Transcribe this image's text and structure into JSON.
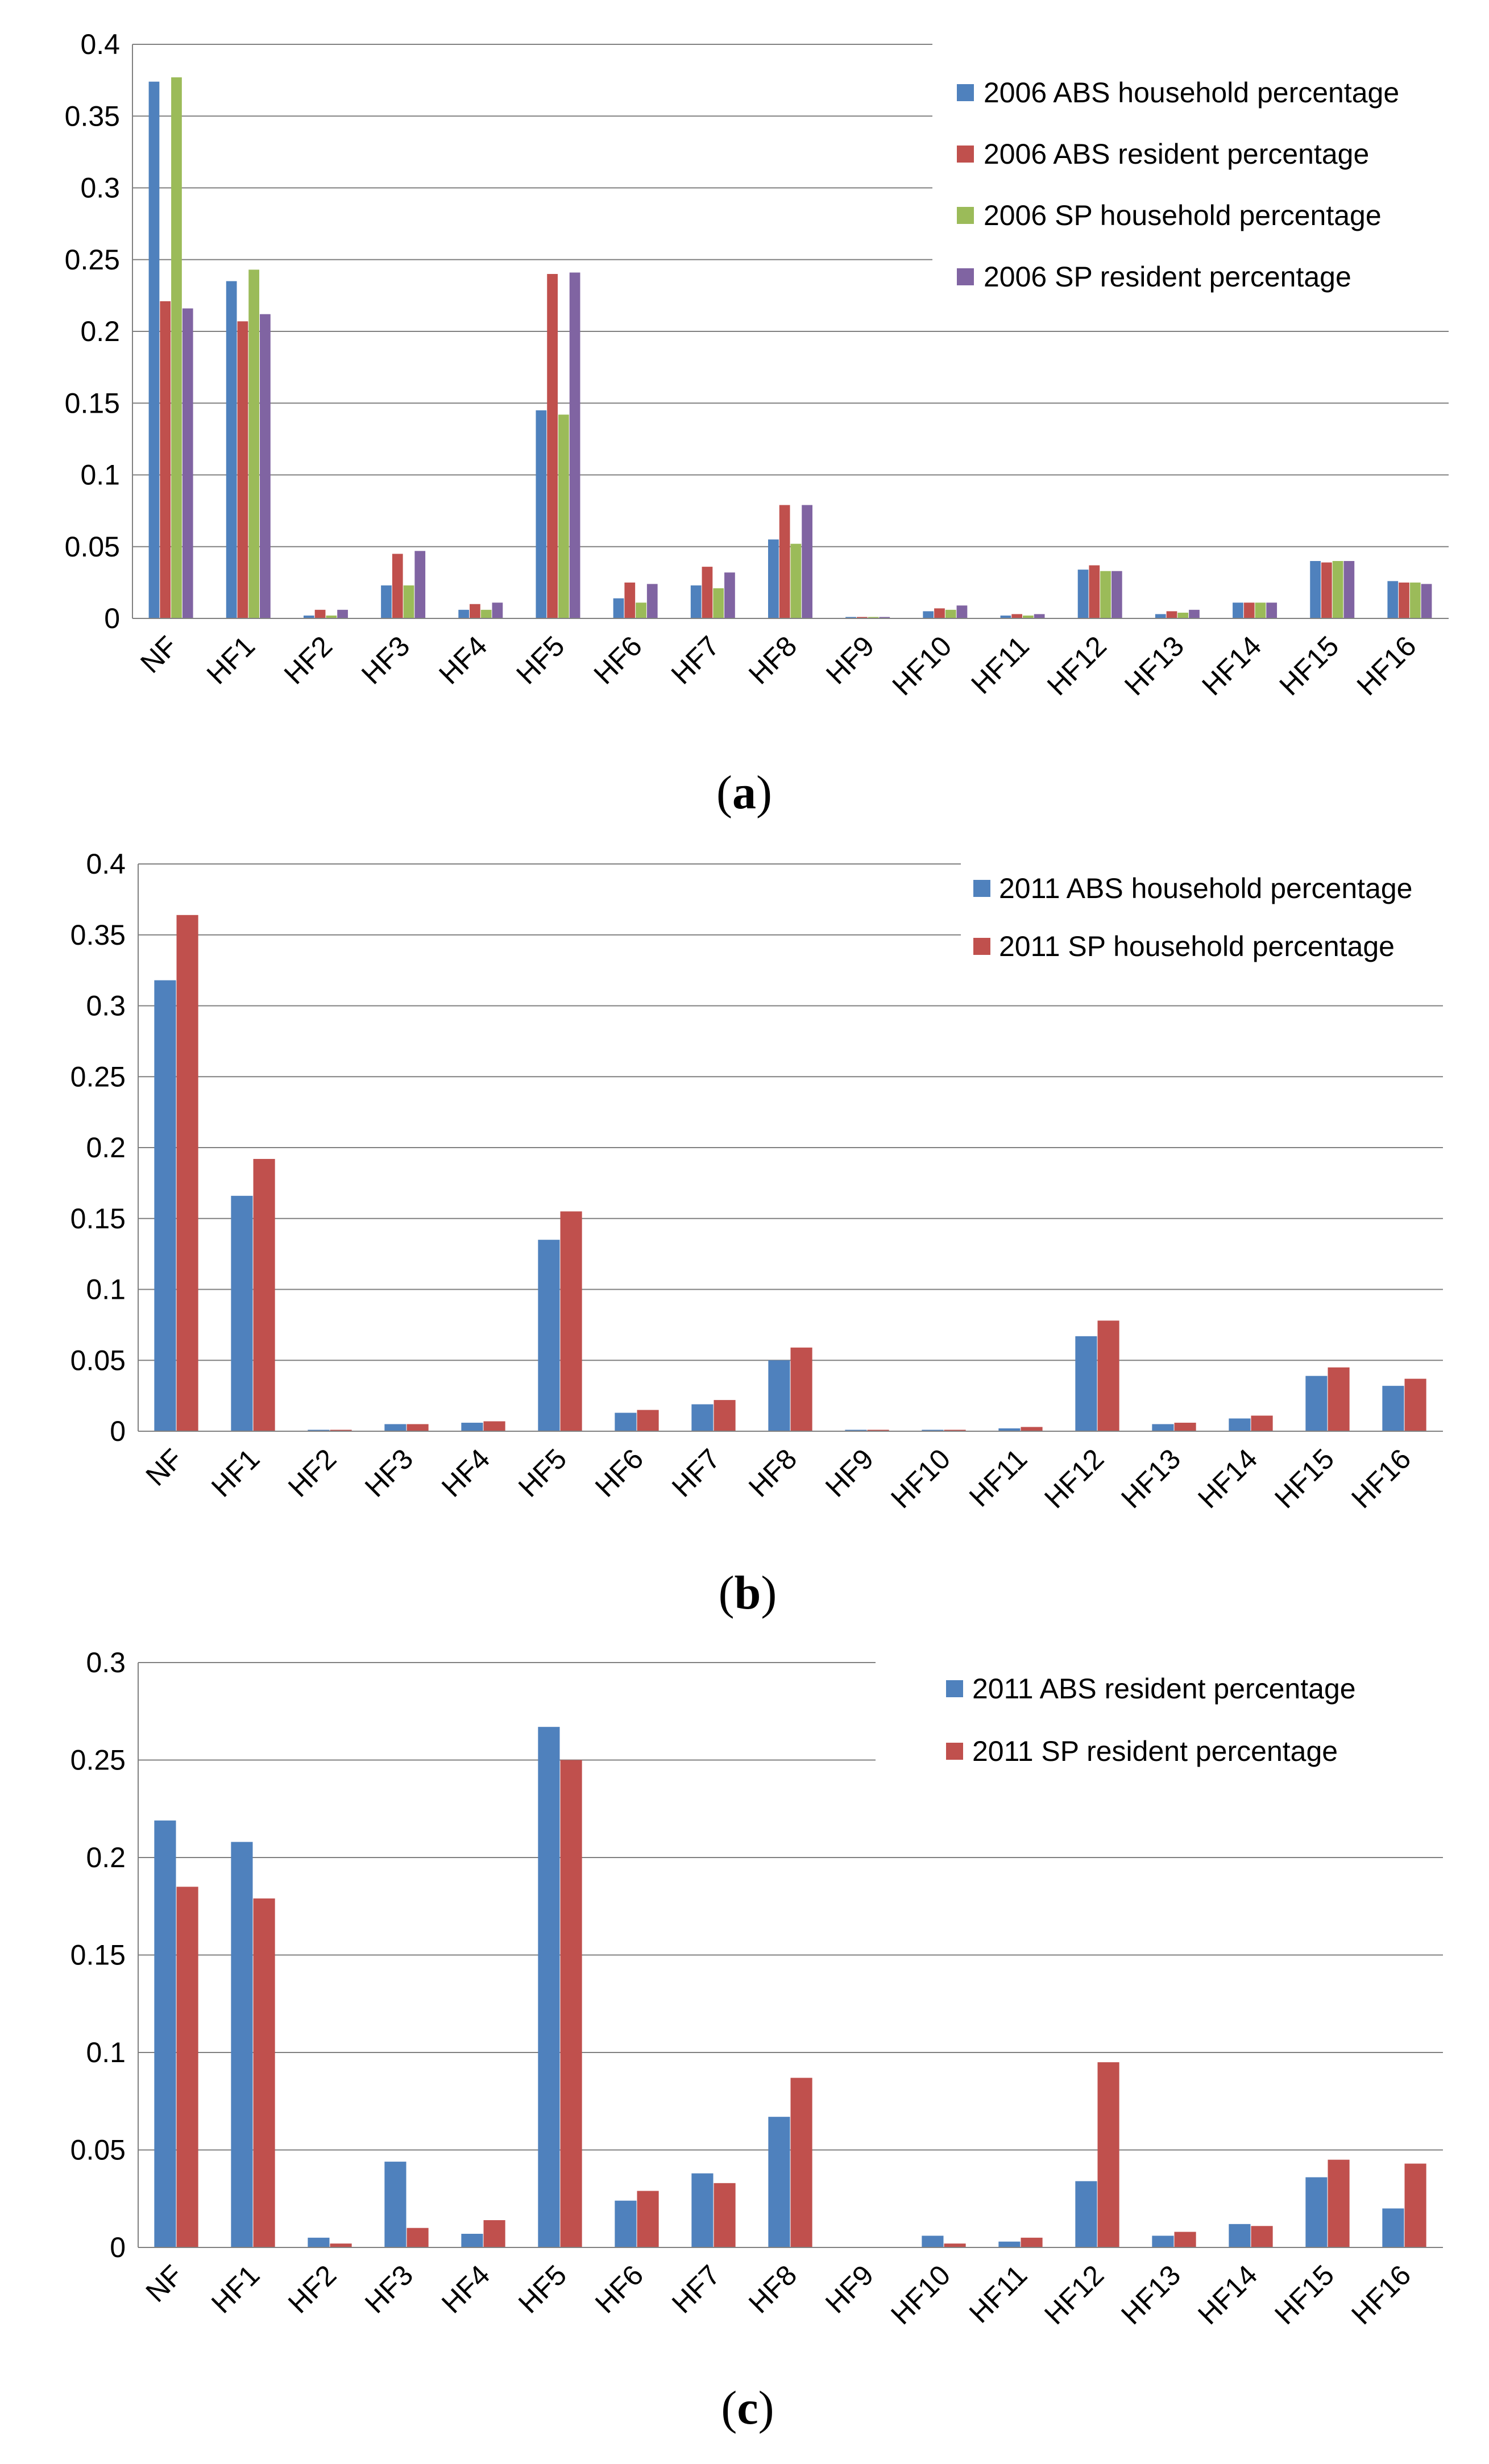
{
  "colors": {
    "blue": "#4f81bd",
    "red": "#c0504d",
    "green": "#9bbb59",
    "purple": "#8064a2"
  },
  "chart_data": [
    {
      "type": "bar",
      "panel_label": "a",
      "categories": [
        "NF",
        "HF1",
        "HF2",
        "HF3",
        "HF4",
        "HF5",
        "HF6",
        "HF7",
        "HF8",
        "HF9",
        "HF10",
        "HF11",
        "HF12",
        "HF13",
        "HF14",
        "HF15",
        "HF16"
      ],
      "ylim": [
        0,
        0.4
      ],
      "yticks": [
        "0",
        "0.05",
        "0.1",
        "0.15",
        "0.2",
        "0.25",
        "0.3",
        "0.35",
        "0.4"
      ],
      "legend_position": "top-right",
      "series": [
        {
          "name": "2006 ABS household percentage",
          "color": "#4f81bd",
          "values": [
            0.374,
            0.235,
            0.002,
            0.023,
            0.006,
            0.145,
            0.014,
            0.023,
            0.055,
            0.001,
            0.005,
            0.002,
            0.034,
            0.003,
            0.011,
            0.04,
            0.026
          ]
        },
        {
          "name": "2006 ABS resident percentage",
          "color": "#c0504d",
          "values": [
            0.221,
            0.207,
            0.006,
            0.045,
            0.01,
            0.24,
            0.025,
            0.036,
            0.079,
            0.001,
            0.007,
            0.003,
            0.037,
            0.005,
            0.011,
            0.039,
            0.025
          ]
        },
        {
          "name": "2006 SP household percentage",
          "color": "#9bbb59",
          "values": [
            0.377,
            0.243,
            0.002,
            0.023,
            0.006,
            0.142,
            0.011,
            0.021,
            0.052,
            0.001,
            0.006,
            0.002,
            0.033,
            0.004,
            0.011,
            0.04,
            0.025
          ]
        },
        {
          "name": "2006 SP resident percentage",
          "color": "#8064a2",
          "values": [
            0.216,
            0.212,
            0.006,
            0.047,
            0.011,
            0.241,
            0.024,
            0.032,
            0.079,
            0.001,
            0.009,
            0.003,
            0.033,
            0.006,
            0.011,
            0.04,
            0.024
          ]
        }
      ]
    },
    {
      "type": "bar",
      "panel_label": "b",
      "categories": [
        "NF",
        "HF1",
        "HF2",
        "HF3",
        "HF4",
        "HF5",
        "HF6",
        "HF7",
        "HF8",
        "HF9",
        "HF10",
        "HF11",
        "HF12",
        "HF13",
        "HF14",
        "HF15",
        "HF16"
      ],
      "ylim": [
        0,
        0.4
      ],
      "yticks": [
        "0",
        "0.05",
        "0.1",
        "0.15",
        "0.2",
        "0.25",
        "0.3",
        "0.35",
        "0.4"
      ],
      "legend_position": "top-right",
      "series": [
        {
          "name": "2011 ABS household percentage",
          "color": "#4f81bd",
          "values": [
            0.318,
            0.166,
            0.001,
            0.005,
            0.006,
            0.135,
            0.013,
            0.019,
            0.05,
            0.001,
            0.001,
            0.002,
            0.067,
            0.005,
            0.009,
            0.039,
            0.032
          ]
        },
        {
          "name": "2011 SP household percentage",
          "color": "#c0504d",
          "values": [
            0.364,
            0.192,
            0.001,
            0.005,
            0.007,
            0.155,
            0.015,
            0.022,
            0.059,
            0.001,
            0.001,
            0.003,
            0.078,
            0.006,
            0.011,
            0.045,
            0.037
          ]
        }
      ]
    },
    {
      "type": "bar",
      "panel_label": "c",
      "categories": [
        "NF",
        "HF1",
        "HF2",
        "HF3",
        "HF4",
        "HF5",
        "HF6",
        "HF7",
        "HF8",
        "HF9",
        "HF10",
        "HF11",
        "HF12",
        "HF13",
        "HF14",
        "HF15",
        "HF16"
      ],
      "ylim": [
        0,
        0.3
      ],
      "yticks": [
        "0",
        "0.05",
        "0.1",
        "0.15",
        "0.2",
        "0.25",
        "0.3"
      ],
      "legend_position": "top-right",
      "series": [
        {
          "name": "2011 ABS resident percentage",
          "color": "#4f81bd",
          "values": [
            0.219,
            0.208,
            0.005,
            0.044,
            0.007,
            0.267,
            0.024,
            0.038,
            0.067,
            0.0,
            0.006,
            0.003,
            0.034,
            0.006,
            0.012,
            0.036,
            0.02
          ]
        },
        {
          "name": "2011 SP resident percentage",
          "color": "#c0504d",
          "values": [
            0.185,
            0.179,
            0.002,
            0.01,
            0.014,
            0.25,
            0.029,
            0.033,
            0.087,
            0.0,
            0.002,
            0.005,
            0.095,
            0.008,
            0.011,
            0.045,
            0.043
          ]
        }
      ]
    }
  ]
}
